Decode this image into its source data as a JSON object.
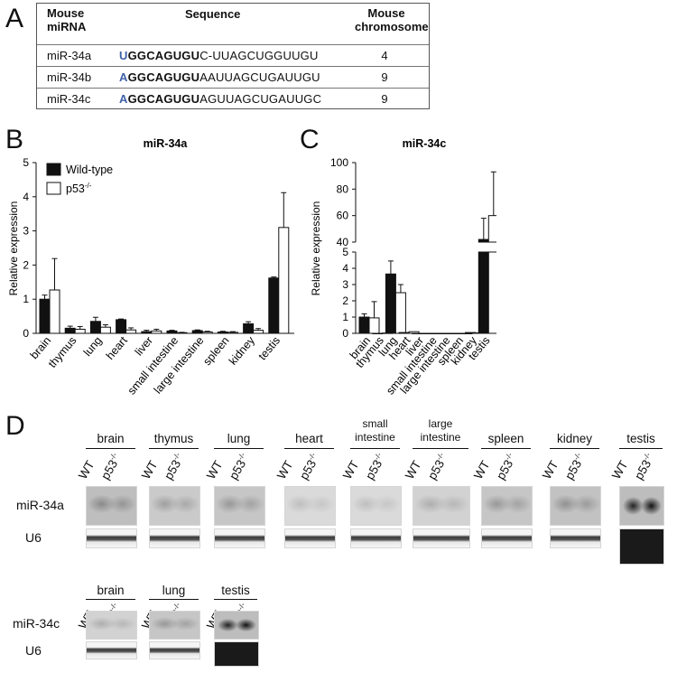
{
  "panel_letters": {
    "a": "A",
    "b": "B",
    "c": "C",
    "d": "D"
  },
  "table": {
    "headers": {
      "mirna_line1": "Mouse",
      "mirna_line2": "miRNA",
      "sequence": "Sequence",
      "chr_line1": "Mouse",
      "chr_line2": "chromosome"
    },
    "rows": [
      {
        "name": "miR-34a",
        "seq_prefix": "U",
        "seq_bold": "GGCAGUGU",
        "seq_rest": "C-UUAGCUGGUUGU",
        "chromosome": "4"
      },
      {
        "name": "miR-34b",
        "seq_prefix": "A",
        "seq_bold": "GGCAGUGU",
        "seq_rest": "AAUUAGCUGAUUGU",
        "chromosome": "9"
      },
      {
        "name": "miR-34c",
        "seq_prefix": "A",
        "seq_bold": "GGCAGUGU",
        "seq_rest": "AGUUAGCUGAUUGC",
        "chromosome": "9"
      }
    ]
  },
  "chart_data": [
    {
      "type": "bar",
      "title": "miR-34a",
      "ylabel": "Relative expression",
      "ylim": [
        0,
        5
      ],
      "yticks": [
        "0",
        "1",
        "2",
        "3",
        "4",
        "5"
      ],
      "categories": [
        "brain",
        "thymus",
        "lung",
        "heart",
        "liver",
        "small intestine",
        "large intestine",
        "spleen",
        "kidney",
        "testis"
      ],
      "series": [
        {
          "name": "Wild-type",
          "color": "#111111",
          "values": [
            1.0,
            0.15,
            0.35,
            0.4,
            0.05,
            0.07,
            0.08,
            0.04,
            0.28,
            1.62
          ],
          "errors": [
            0.12,
            0.06,
            0.12,
            0.02,
            0.04,
            0.02,
            0.02,
            0.02,
            0.06,
            0.03
          ]
        },
        {
          "name": "p53",
          "color": "#ffffff",
          "values": [
            1.27,
            0.12,
            0.18,
            0.1,
            0.07,
            0.02,
            0.04,
            0.03,
            0.09,
            3.1
          ],
          "errors": [
            0.92,
            0.08,
            0.07,
            0.06,
            0.05,
            0.01,
            0.02,
            0.02,
            0.05,
            1.02
          ]
        }
      ],
      "legend": {
        "wt": "Wild-type",
        "ko_base": "p53",
        "ko_sup": "-/-"
      },
      "legend_position": "top-left"
    },
    {
      "type": "bar",
      "title": "miR-34c",
      "ylabel": "Relative expression",
      "y_axis_break": true,
      "ylim_lower": [
        0,
        5
      ],
      "ylim_upper": [
        40,
        100
      ],
      "yticks_lower": [
        "0",
        "1",
        "2",
        "3",
        "4",
        "5"
      ],
      "yticks_upper": [
        "40",
        "60",
        "80",
        "100"
      ],
      "categories": [
        "brain",
        "thymus",
        "lung",
        "heart",
        "liver",
        "small intestine",
        "large intestine",
        "spleen",
        "kidney",
        "testis"
      ],
      "series": [
        {
          "name": "Wild-type",
          "color": "#111111",
          "values": [
            1.0,
            0.0,
            3.65,
            0.05,
            0.0,
            0.0,
            0.0,
            0.0,
            0.05,
            42
          ],
          "errors": [
            0.2,
            0,
            0.8,
            0,
            0,
            0,
            0,
            0,
            0,
            16
          ]
        },
        {
          "name": "p53",
          "color": "#ffffff",
          "values": [
            0.95,
            0.02,
            2.5,
            0.1,
            0.0,
            0.0,
            0.0,
            0.0,
            0.03,
            60
          ],
          "errors": [
            1.0,
            0,
            0.5,
            0,
            0,
            0,
            0,
            0,
            0,
            33
          ]
        }
      ]
    }
  ],
  "blots": {
    "lane_wt": "WT",
    "lane_ko": "p53",
    "lane_ko_sup": "-/-",
    "row1_mir": "miR-34a",
    "row1_u6": "U6",
    "row2_mir": "miR-34c",
    "row2_u6": "U6",
    "top_tissues": [
      {
        "line1": "brain",
        "line2": ""
      },
      {
        "line1": "thymus",
        "line2": ""
      },
      {
        "line1": "lung",
        "line2": ""
      },
      {
        "line1": "heart",
        "line2": ""
      },
      {
        "line1": "small",
        "line2": "intestine"
      },
      {
        "line1": "large",
        "line2": "intestine"
      },
      {
        "line1": "spleen",
        "line2": ""
      },
      {
        "line1": "kidney",
        "line2": ""
      },
      {
        "line1": "testis",
        "line2": ""
      }
    ],
    "bottom_tissues": [
      {
        "line1": "brain"
      },
      {
        "line1": "lung"
      },
      {
        "line1": "testis"
      }
    ]
  }
}
